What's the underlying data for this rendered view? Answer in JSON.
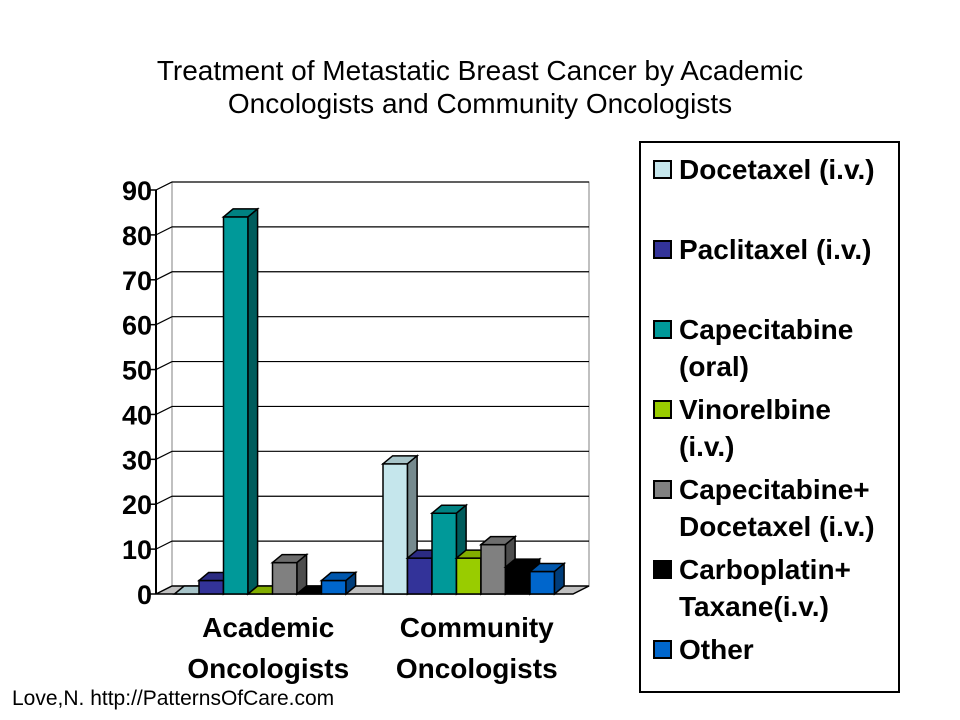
{
  "chart_data": {
    "type": "bar",
    "title": "Treatment of Metastatic Breast Cancer by Academic Oncologists and Community Oncologists",
    "title_lines": [
      "Treatment of Metastatic Breast Cancer by Academic",
      "Oncologists and Community Oncologists"
    ],
    "categories": [
      {
        "lines": [
          "Academic",
          "Oncologists"
        ]
      },
      {
        "lines": [
          "Community",
          "Oncologists"
        ]
      }
    ],
    "series": [
      {
        "name": "Docetaxel (i.v.)",
        "name_lines": [
          "Docetaxel (i.v.)"
        ],
        "color": "#c5e6ec",
        "values": [
          0,
          29
        ]
      },
      {
        "name": "Paclitaxel (i.v.)",
        "name_lines": [
          "Paclitaxel (i.v.)"
        ],
        "color": "#333399",
        "values": [
          3,
          8
        ]
      },
      {
        "name": "Capecitabine (oral)",
        "name_lines": [
          "Capecitabine",
          "(oral)"
        ],
        "color": "#009999",
        "values": [
          84,
          18
        ]
      },
      {
        "name": "Vinorelbine (i.v.)",
        "name_lines": [
          "Vinorelbine",
          "(i.v.)"
        ],
        "color": "#99cc00",
        "values": [
          0,
          8
        ]
      },
      {
        "name": "Capecitabine+ Docetaxel (i.v.)",
        "name_lines": [
          "Capecitabine+",
          "Docetaxel (i.v.)"
        ],
        "color": "#808080",
        "values": [
          7,
          11
        ]
      },
      {
        "name": "Carboplatin+ Taxane(i.v.)",
        "name_lines": [
          "Carboplatin+",
          "Taxane(i.v.)"
        ],
        "color": "#000000",
        "values": [
          0,
          6
        ]
      },
      {
        "name": "Other",
        "name_lines": [
          "Other"
        ],
        "color": "#0066cc",
        "values": [
          3,
          5
        ]
      }
    ],
    "yticks": [
      0,
      10,
      20,
      30,
      40,
      50,
      60,
      70,
      80,
      90
    ],
    "ylim": [
      0,
      90
    ],
    "xlabel": "",
    "ylabel": "",
    "grid": true,
    "legend_position": "right",
    "three_d": true
  },
  "source": "Love,N. http://PatternsOfCare.com"
}
